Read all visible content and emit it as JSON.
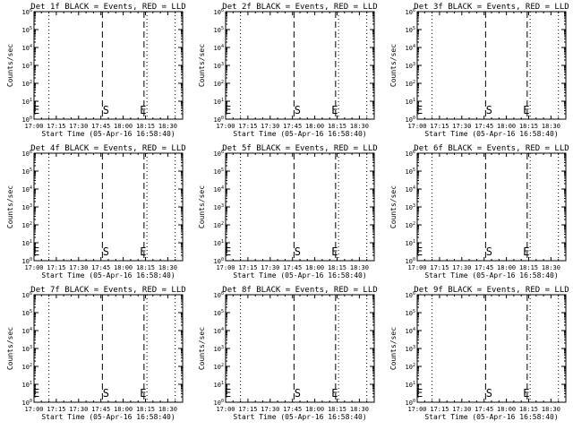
{
  "chart_data": {
    "type": "line",
    "layout": {
      "rows": 3,
      "cols": 3
    },
    "panels": [
      {
        "title": "Det 1f BLACK = Events, RED = LLD",
        "marker_s": "17:46",
        "marker_e1": "18:14",
        "marker_e2": "17:01"
      },
      {
        "title": "Det 2f BLACK = Events, RED = LLD",
        "marker_s": "17:46",
        "marker_e1": "18:14",
        "marker_e2": "17:01"
      },
      {
        "title": "Det 3f BLACK = Events, RED = LLD",
        "marker_s": "17:46",
        "marker_e1": "18:14",
        "marker_e2": "17:01"
      },
      {
        "title": "Det 4f BLACK = Events, RED = LLD",
        "marker_s": "17:46",
        "marker_e1": "18:14",
        "marker_e2": "17:01"
      },
      {
        "title": "Det 5f BLACK = Events, RED = LLD",
        "marker_s": "17:46",
        "marker_e1": "18:14",
        "marker_e2": "17:01"
      },
      {
        "title": "Det 6f BLACK = Events, RED = LLD",
        "marker_s": "17:46",
        "marker_e1": "18:14",
        "marker_e2": "17:01"
      },
      {
        "title": "Det 7f BLACK = Events, RED = LLD",
        "marker_s": "17:46",
        "marker_e1": "18:14",
        "marker_e2": "17:01"
      },
      {
        "title": "Det 8f BLACK = Events, RED = LLD",
        "marker_s": "17:46",
        "marker_e1": "18:14",
        "marker_e2": "17:01"
      },
      {
        "title": "Det 9f BLACK = Events, RED = LLD",
        "marker_s": "17:46",
        "marker_e1": "18:14",
        "marker_e2": "17:01"
      }
    ],
    "xlabel": "Start Time (05-Apr-16 16:58:40)",
    "ylabel": "Counts/sec",
    "x_ticks": [
      "17:00",
      "17:15",
      "17:30",
      "17:45",
      "18:00",
      "18:15",
      "18:30"
    ],
    "x_minutes": [
      0,
      15,
      30,
      45,
      60,
      75,
      90
    ],
    "x_range_minutes": [
      0,
      100
    ],
    "y_scale": "log",
    "y_tick_exponents": [
      0,
      1,
      2,
      3,
      4,
      5,
      6
    ],
    "y_range_exponents": [
      0,
      6
    ],
    "dotted_lines": [
      "17:10",
      "18:16",
      "18:35"
    ],
    "dashed_lines": [
      "17:46",
      "18:14"
    ],
    "marker_labels": {
      "s": "S",
      "e": "E"
    },
    "series": []
  }
}
